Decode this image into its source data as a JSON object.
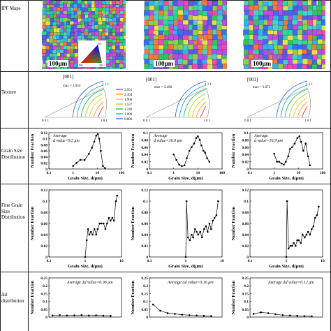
{
  "row_labels": {
    "ipf": [
      "IPF Maps"
    ],
    "texture": [
      "Texture"
    ],
    "grain": [
      "Grain Size",
      "Distribution"
    ],
    "fine": [
      "Fine Grain",
      "Size",
      "Distribution"
    ],
    "delta": [
      "Δd",
      "distribution"
    ]
  },
  "ipf": {
    "scale_label": "100μm",
    "key_labels": [
      "111",
      "001",
      "101"
    ]
  },
  "texture": {
    "plane": "[001]",
    "corner_labels": {
      "top": "1 1 1",
      "left": "0 0 1",
      "right": "1 0 1"
    },
    "maxima": [
      "max = 3.634",
      "max = 3.496",
      "max = 3.072"
    ],
    "legend_values": [
      "2.931",
      "2.364",
      "1.906",
      "1.537",
      "1.240",
      "1.000",
      "0.806"
    ],
    "legend_colors": [
      "#ff2020",
      "#ff8c00",
      "#e6c800",
      "#9bd000",
      "#00b050",
      "#00a0e0",
      "#3050e0"
    ]
  },
  "grain_annotation_prefix": "Average",
  "grain_annotations": [
    "d value=9.5 μm",
    "d value=16.0 μm",
    "d value=16.9 μm"
  ],
  "delta_annotations": [
    "Average Δd value=0.06 μm",
    "Average Δd value=0.16 μm",
    "Average Δd value=0.12 μm"
  ],
  "axis_labels": {
    "y_number_fraction": "Number Fraction",
    "x_grain_size": "Grain Size, d(μm)"
  },
  "chart_data": [
    {
      "type": "line",
      "panel": "grain-1",
      "xscale": "log",
      "xlim": [
        0.1,
        100
      ],
      "ylim": [
        0,
        0.12
      ],
      "xticks": [
        "0.1",
        "1",
        "10",
        "100"
      ],
      "yticks": [
        "0",
        "0.02",
        "0.04",
        "0.06",
        "0.08",
        "0.1",
        "0.12"
      ],
      "x": [
        1.0,
        1.4,
        2.0,
        3.0,
        4.5,
        6.0,
        7.5,
        9.0,
        10.5,
        12.0,
        14.0,
        17.0,
        21.0
      ],
      "y": [
        0.01,
        0.02,
        0.03,
        0.03,
        0.05,
        0.07,
        0.09,
        0.11,
        0.115,
        0.1,
        0.06,
        0.01,
        0.003
      ]
    },
    {
      "type": "line",
      "panel": "grain-2",
      "xscale": "log",
      "xlim": [
        0.1,
        100
      ],
      "ylim": [
        0,
        0.1
      ],
      "xticks": [
        "0.1",
        "1",
        "10",
        "100"
      ],
      "yticks": [
        "0",
        "0.02",
        "0.04",
        "0.06",
        "0.08",
        "0.1"
      ],
      "x": [
        1.0,
        1.3,
        1.7,
        2.2,
        2.8,
        3.5,
        4.5,
        5.5,
        7.0,
        8.5,
        10.0,
        12.0,
        14.0,
        17.0,
        20.0,
        24.0,
        30.0
      ],
      "y": [
        0.04,
        0.025,
        0.012,
        0.008,
        0.01,
        0.03,
        0.05,
        0.06,
        0.07,
        0.085,
        0.09,
        0.08,
        0.065,
        0.05,
        0.045,
        0.03,
        0.02
      ]
    },
    {
      "type": "line",
      "panel": "grain-3",
      "xscale": "log",
      "xlim": [
        0.1,
        100
      ],
      "ylim": [
        0,
        0.1
      ],
      "xticks": [
        "0.1",
        "1",
        "10",
        "100"
      ],
      "yticks": [
        "0",
        "0.02",
        "0.04",
        "0.06",
        "0.08",
        "0.1"
      ],
      "x": [
        1.0,
        1.3,
        1.6,
        2.0,
        2.5,
        3.0,
        3.8,
        4.5,
        5.5,
        7.0,
        9.0,
        11.0,
        13.0,
        16.0,
        20.0,
        25.0,
        30.0
      ],
      "y": [
        0.042,
        0.02,
        0.02,
        0.015,
        0.012,
        0.02,
        0.035,
        0.055,
        0.06,
        0.07,
        0.085,
        0.09,
        0.075,
        0.05,
        0.07,
        0.035,
        0.01
      ]
    },
    {
      "type": "line",
      "panel": "fine-1",
      "xscale": "log",
      "xlim": [
        0.1,
        10
      ],
      "ylim": [
        0,
        0.12
      ],
      "xticks": [
        "0.1",
        "1",
        "10"
      ],
      "yticks": [
        "0",
        "0.02",
        "0.04",
        "0.06",
        "0.08",
        "0.1",
        "0.12"
      ],
      "x": [
        1.0,
        1.1,
        1.2,
        1.3,
        1.45,
        1.6,
        1.8,
        2.0,
        2.2,
        2.5,
        2.8,
        3.2,
        3.6,
        4.0,
        4.5,
        5.0,
        5.6,
        6.2,
        7.0,
        7.6
      ],
      "y": [
        0.0,
        0.03,
        0.05,
        0.04,
        0.045,
        0.04,
        0.05,
        0.04,
        0.05,
        0.06,
        0.06,
        0.06,
        0.05,
        0.06,
        0.07,
        0.065,
        0.07,
        0.065,
        0.1,
        0.11
      ]
    },
    {
      "type": "line",
      "panel": "fine-2",
      "xscale": "log",
      "xlim": [
        0.1,
        10
      ],
      "ylim": [
        0,
        0.12
      ],
      "xticks": [
        "0.1",
        "1",
        "10"
      ],
      "yticks": [
        "0",
        "0.02",
        "0.04",
        "0.06",
        "0.08",
        "0.1",
        "0.12"
      ],
      "x": [
        1.0,
        1.05,
        1.15,
        1.3,
        1.45,
        1.6,
        1.8,
        2.0,
        2.2,
        2.5,
        2.8,
        3.2,
        3.6,
        4.0,
        4.5,
        5.0,
        5.6,
        6.2,
        7.0,
        7.8
      ],
      "y": [
        0.0,
        0.1,
        0.035,
        0.03,
        0.04,
        0.035,
        0.05,
        0.045,
        0.04,
        0.045,
        0.035,
        0.05,
        0.055,
        0.045,
        0.06,
        0.05,
        0.065,
        0.07,
        0.075,
        0.1
      ]
    },
    {
      "type": "line",
      "panel": "fine-3",
      "xscale": "log",
      "xlim": [
        0.1,
        10
      ],
      "ylim": [
        0,
        0.12
      ],
      "xticks": [
        "0.1",
        "1",
        "10"
      ],
      "yticks": [
        "0",
        "0.02",
        "0.04",
        "0.06",
        "0.08",
        "0.1",
        "0.12"
      ],
      "x": [
        1.0,
        1.05,
        1.15,
        1.3,
        1.45,
        1.6,
        1.8,
        2.0,
        2.2,
        2.5,
        2.8,
        3.2,
        3.6,
        4.0,
        4.5,
        5.0,
        5.6,
        6.2,
        7.0,
        7.8
      ],
      "y": [
        0.0,
        0.1,
        0.015,
        0.02,
        0.02,
        0.025,
        0.02,
        0.03,
        0.03,
        0.025,
        0.04,
        0.035,
        0.04,
        0.045,
        0.04,
        0.05,
        0.055,
        0.07,
        0.075,
        0.09
      ]
    },
    {
      "type": "line",
      "panel": "delta-1",
      "xlim": [
        0,
        10
      ],
      "ylim": [
        0,
        0.25
      ],
      "yticks": [
        "0",
        "0.05",
        "0.1",
        "0.15",
        "0.2",
        "0.25"
      ],
      "x": [
        0.5,
        1.5,
        2.5,
        3.5,
        4.5,
        5.5,
        6.5,
        7.5,
        8.5
      ],
      "y": [
        0.01,
        0.012,
        0.01,
        0.011,
        0.012,
        0.01,
        0.011,
        0.009,
        0.008
      ]
    },
    {
      "type": "line",
      "panel": "delta-2",
      "xlim": [
        0,
        10
      ],
      "ylim": [
        0,
        0.25
      ],
      "yticks": [
        "0",
        "0.05",
        "0.1",
        "0.15",
        "0.2",
        "0.25"
      ],
      "x": [
        0.5,
        1.5,
        2.5,
        3.5,
        4.5,
        5.5,
        6.5,
        7.5,
        8.5
      ],
      "y": [
        0.08,
        0.04,
        0.025,
        0.02,
        0.015,
        0.012,
        0.01,
        0.008,
        0.006
      ]
    },
    {
      "type": "line",
      "panel": "delta-3",
      "xlim": [
        0,
        10
      ],
      "ylim": [
        0,
        0.25
      ],
      "yticks": [
        "0",
        "0.05",
        "0.1",
        "0.15",
        "0.2",
        "0.25"
      ],
      "x": [
        0.5,
        1.5,
        2.5,
        3.5,
        4.5,
        5.5,
        6.5,
        7.5,
        8.5
      ],
      "y": [
        0.02,
        0.03,
        0.025,
        0.018,
        0.012,
        0.01,
        0.008,
        0.006,
        0.005
      ]
    }
  ]
}
